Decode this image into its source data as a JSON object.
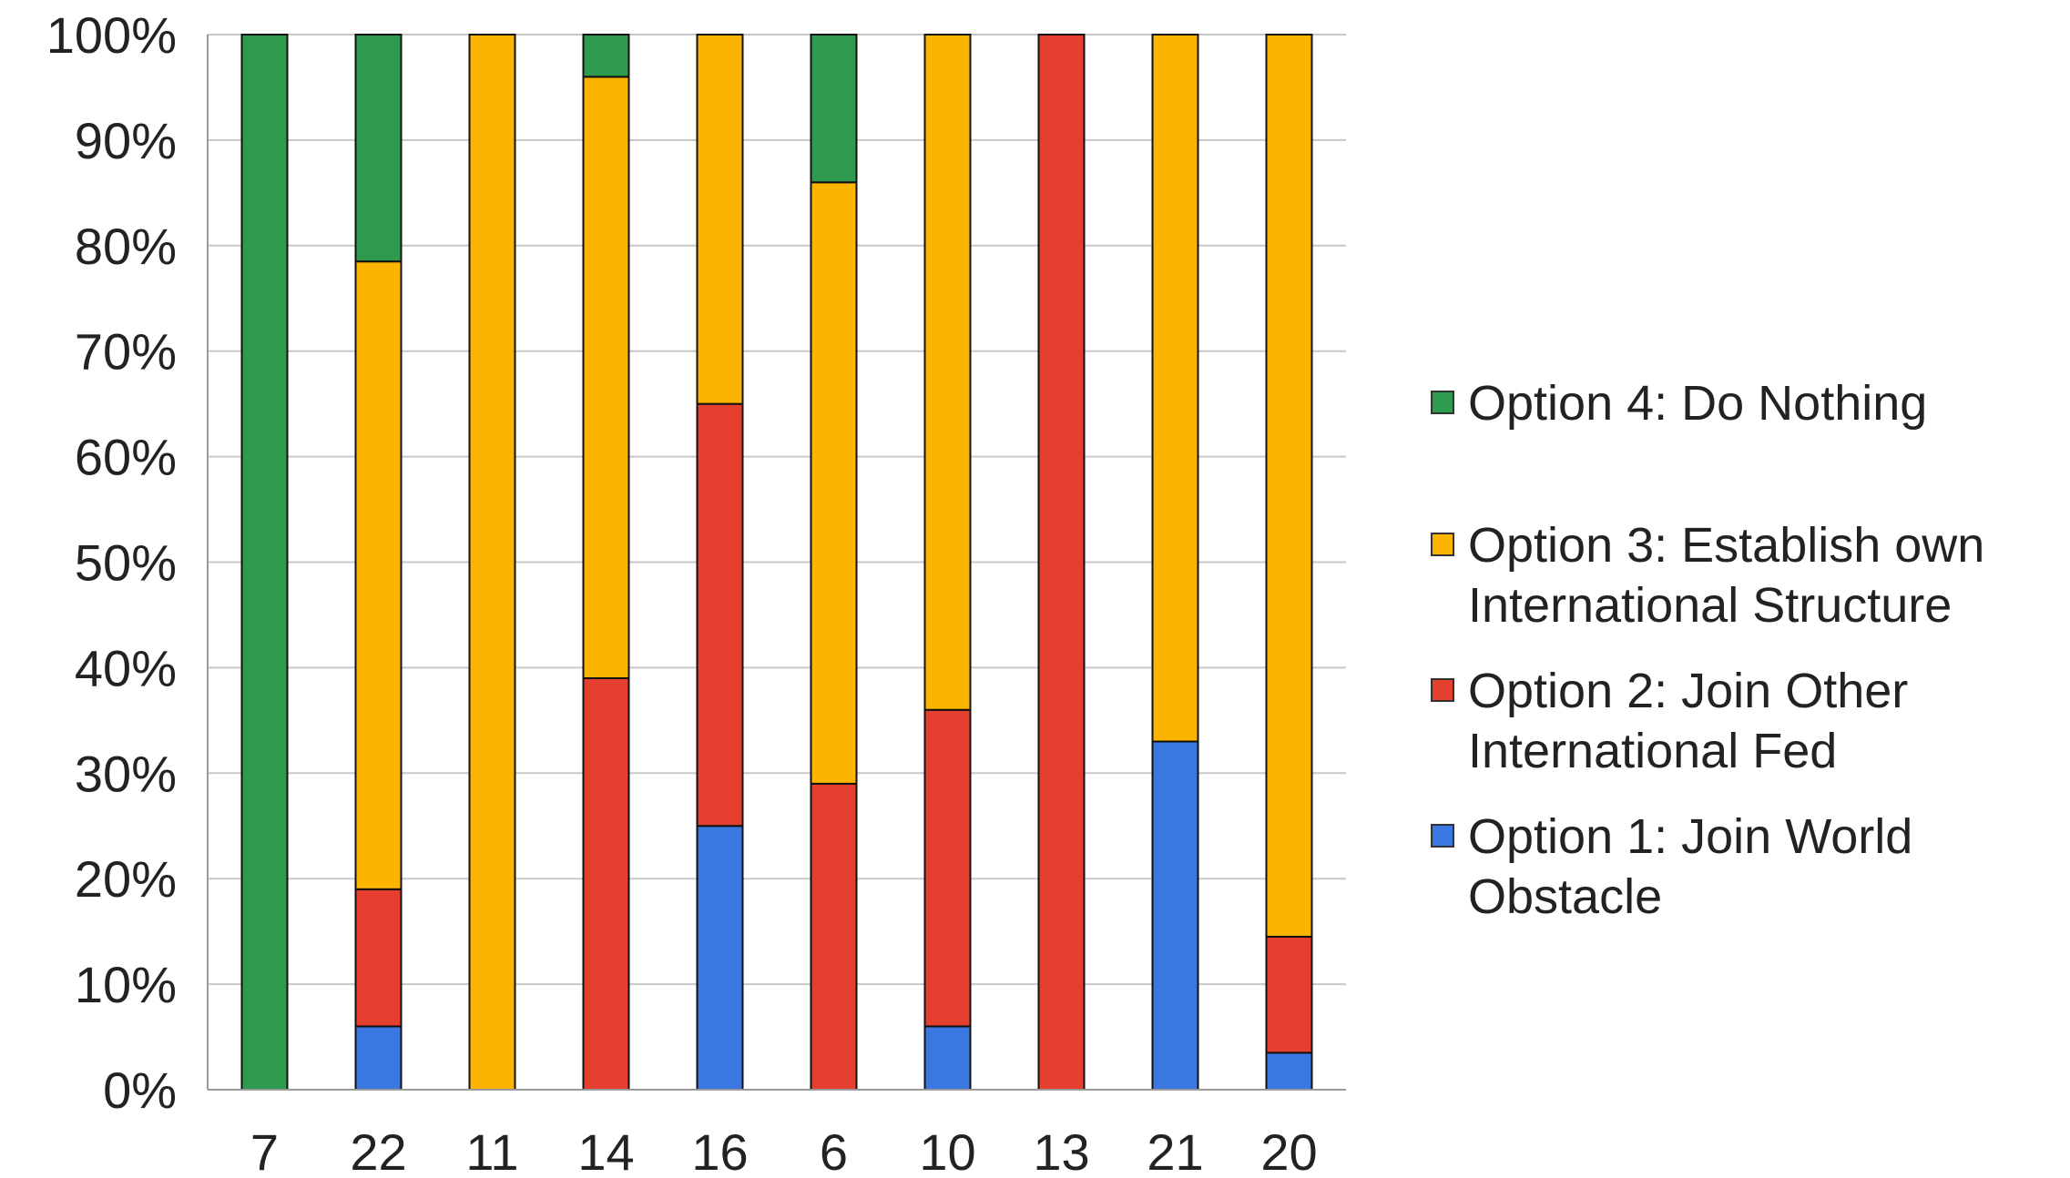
{
  "chart_data": {
    "type": "bar",
    "stacked": "percent",
    "categories": [
      "7",
      "22",
      "11",
      "14",
      "16",
      "6",
      "10",
      "13",
      "21",
      "20"
    ],
    "series": [
      {
        "name": "Option 1:  Join World Obstacle",
        "color": "#3b77e0",
        "values": [
          0,
          6,
          0,
          0,
          25,
          0,
          6,
          0,
          33,
          3.5
        ]
      },
      {
        "name": "Option 2: Join Other International Fed",
        "color": "#e53f30",
        "values": [
          0,
          13,
          0,
          39,
          40,
          29,
          30,
          100,
          0,
          11
        ]
      },
      {
        "name": "Option 3:  Establish own International Structure",
        "color": "#fbb400",
        "values": [
          0,
          59.5,
          100,
          57,
          35,
          57,
          64,
          0,
          67,
          85.5
        ]
      },
      {
        "name": "Option 4:  Do Nothing",
        "color": "#2e9a4e",
        "values": [
          100,
          21.5,
          0,
          4,
          0,
          14,
          0,
          0,
          0,
          0
        ]
      }
    ],
    "ylim": [
      0,
      100
    ],
    "yticks": [
      "0%",
      "10%",
      "20%",
      "30%",
      "40%",
      "50%",
      "60%",
      "70%",
      "80%",
      "90%",
      "100%"
    ],
    "grid": true,
    "legend_position": "right",
    "legend": [
      {
        "lines": [
          "Option 4:  Do Nothing"
        ],
        "color": "#2e9a4e"
      },
      {
        "lines": [
          "Option 3:  Establish own",
          "International Structure"
        ],
        "color": "#fbb400"
      },
      {
        "lines": [
          "Option 2: Join Other",
          "International Fed"
        ],
        "color": "#e53f30"
      },
      {
        "lines": [
          "Option 1:  Join World",
          "Obstacle"
        ],
        "color": "#3b77e0"
      }
    ]
  }
}
